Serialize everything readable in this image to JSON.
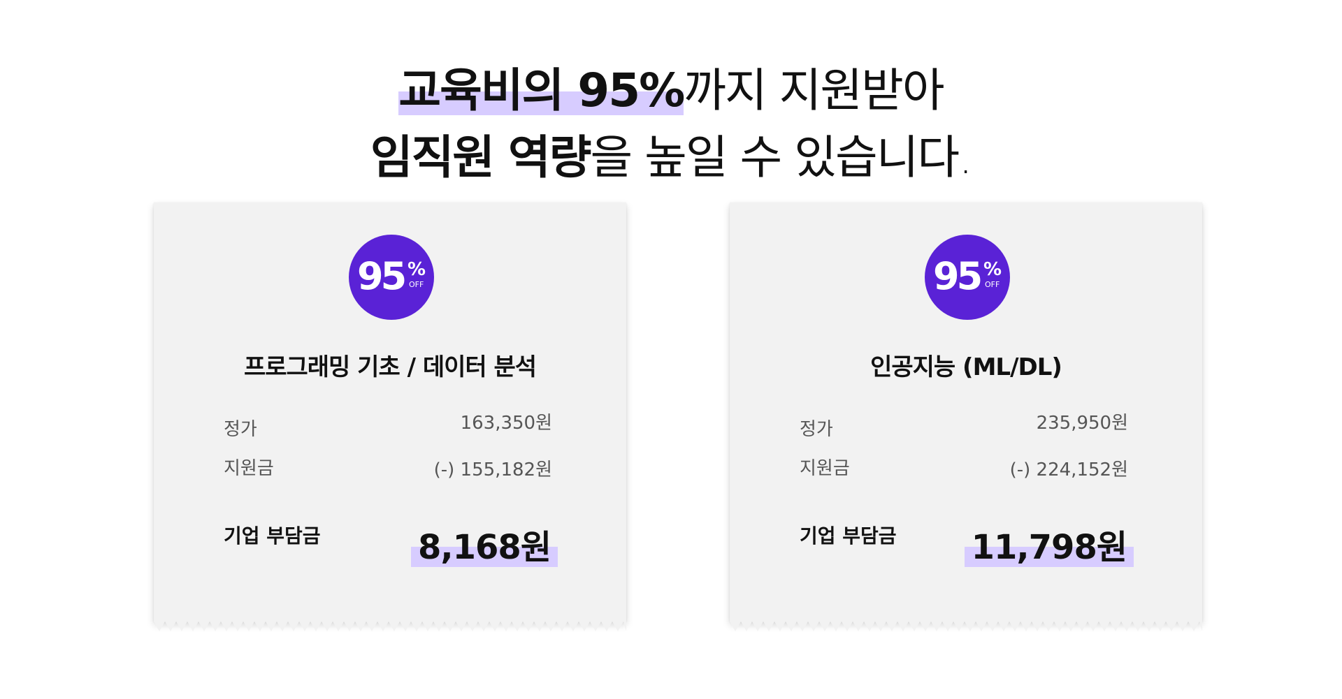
{
  "headline": {
    "line1_bold": "교육비의 95%",
    "line1_rest": "까지 지원받아",
    "line2_bold": "임직원 역량",
    "line2_rest": "을 높일 수 있습니다."
  },
  "colors": {
    "accent": "#5a22d6",
    "highlight": "#d7ccff",
    "card_bg": "#f2f2f2"
  },
  "cards": [
    {
      "badge": {
        "number": "95",
        "percent": "%",
        "off": "OFF"
      },
      "title": "프로그래밍 기초 / 데이터 분석",
      "price_label": "정가",
      "price_value": "163,350원",
      "subsidy_label": "지원금",
      "subsidy_value": "(-) 155,182원",
      "total_label": "기업 부담금",
      "total_value": "8,168원"
    },
    {
      "badge": {
        "number": "95",
        "percent": "%",
        "off": "OFF"
      },
      "title": "인공지능 (ML/DL)",
      "price_label": "정가",
      "price_value": "235,950원",
      "subsidy_label": "지원금",
      "subsidy_value": "(-) 224,152원",
      "total_label": "기업 부담금",
      "total_value": "11,798원"
    }
  ]
}
